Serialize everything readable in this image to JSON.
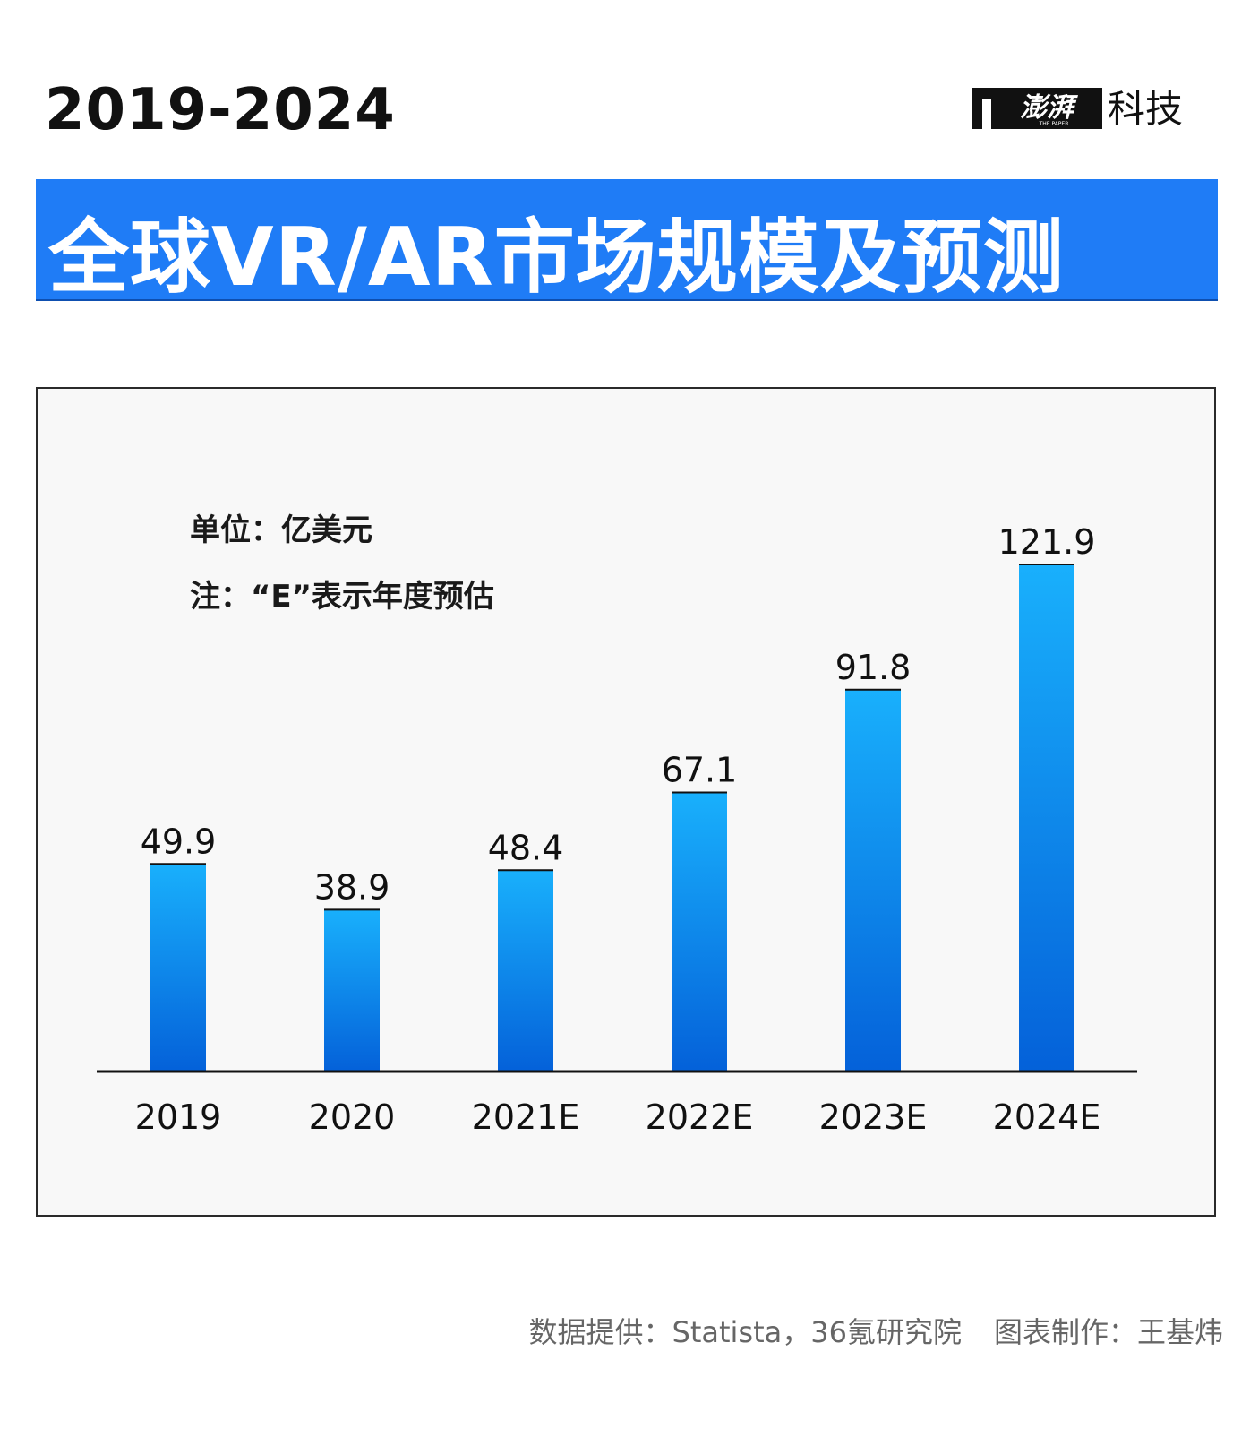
{
  "header": {
    "year_range": "2019-2024",
    "title": "全球VR/AR市场规模及预测"
  },
  "logo": {
    "brand_cn": "澎湃",
    "brand_en": "THE PAPER",
    "suffix": "科技",
    "icon": "thepaper-t-logo-icon"
  },
  "notes": {
    "unit": "单位：亿美元",
    "estimate": "注：“E”表示年度预估"
  },
  "footer": {
    "source": "数据提供：Statista，36氪研究院",
    "author": "图表制作：王基炜"
  },
  "colors": {
    "title_bar": "#1f7cf6",
    "bar_top": "#19b0fc",
    "bar_bottom": "#0461d9"
  },
  "chart_data": {
    "type": "bar",
    "categories": [
      "2019",
      "2020",
      "2021E",
      "2022E",
      "2023E",
      "2024E"
    ],
    "values": [
      49.9,
      38.9,
      48.4,
      67.1,
      91.8,
      121.9
    ],
    "data_labels": [
      "49.9",
      "38.9",
      "48.4",
      "67.1",
      "91.8",
      "121.9"
    ],
    "ylim": [
      0,
      121.9
    ],
    "grid": false,
    "legend": "none"
  }
}
